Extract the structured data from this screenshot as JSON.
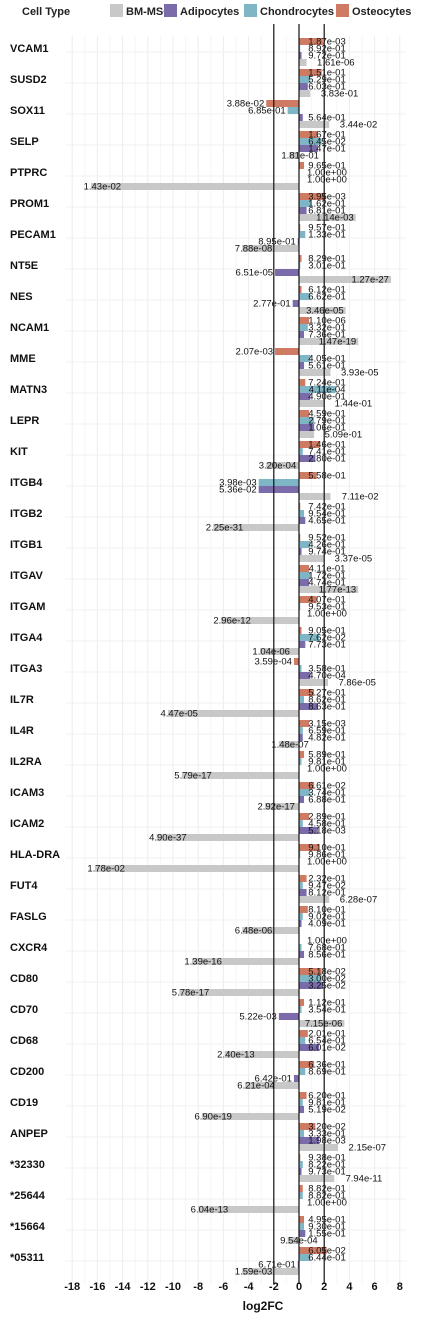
{
  "chart_data": {
    "type": "bar",
    "orientation": "horizontal",
    "legend": {
      "title": "Cell Type",
      "placement": "top",
      "entries": [
        {
          "name": "BM-MSC",
          "color": "#c8c8c8"
        },
        {
          "name": "Adipocytes",
          "color": "#7b6bab"
        },
        {
          "name": "Chondrocytes",
          "color": "#7fb6c6"
        },
        {
          "name": "Osteocytes",
          "color": "#cf7b64"
        }
      ]
    },
    "xlabel": "log2FC",
    "xlim": [
      -18.5,
      8.5
    ],
    "xticks": [
      -18,
      -16,
      -14,
      -12,
      -10,
      -8,
      -6,
      -4,
      -2,
      0,
      2,
      4,
      6,
      8
    ],
    "reference_lines": [
      -2,
      0,
      2
    ],
    "grid": true,
    "categories": [
      "VCAM1",
      "SUSD2",
      "SOX11",
      "SELP",
      "PTPRC",
      "PROM1",
      "PECAM1",
      "NT5E",
      "NES",
      "NCAM1",
      "MME",
      "MATN3",
      "LEPR",
      "KIT",
      "ITGB4",
      "ITGB2",
      "ITGB1",
      "ITGAV",
      "ITGAM",
      "ITGA4",
      "ITGA3",
      "IL7R",
      "IL4R",
      "IL2RA",
      "ICAM3",
      "ICAM2",
      "HLA-DRA",
      "FUT4",
      "FASLG",
      "CXCR4",
      "CD80",
      "CD70",
      "CD68",
      "CD200",
      "CD19",
      "ANPEP",
      "*32330",
      "*25644",
      "*15664",
      "*05311"
    ],
    "series": [
      {
        "name": "Osteocytes",
        "values": [
          1.9,
          1.8,
          -2.6,
          1.5,
          0.4,
          2.1,
          0.1,
          0.2,
          0.2,
          0.8,
          -1.9,
          0.5,
          0.8,
          1.6,
          1.4,
          0.1,
          0.1,
          0.8,
          1.4,
          0.2,
          -0.4,
          1.2,
          0.8,
          0.4,
          1.2,
          0.8,
          1.6,
          0.6,
          0.7,
          0.0,
          1.8,
          0.4,
          0.7,
          1.2,
          0.6,
          1.3,
          0.1,
          0.3,
          0.4,
          2.2
        ],
        "labels": [
          "1.87e-03",
          "1.51e-01",
          "3.88e-02",
          "1.67e-01",
          "9.65e-01",
          "3.95e-03",
          "9.57e-01",
          "8.29e-01",
          "6.12e-01",
          "1.10e-06",
          "2.07e-03",
          "7.24e-01",
          "4.59e-01",
          "1.46e-01",
          "5.58e-01",
          "7.42e-01",
          "9.52e-01",
          "4.11e-01",
          "4.07e-01",
          "9.05e-01",
          "3.59e-04",
          "5.27e-01",
          "3.15e-03",
          "5.89e-01",
          "6.61e-02",
          "2.89e-01",
          "9.10e-01",
          "2.32e-01",
          "8.10e-01",
          "1.00e+00",
          "5.18e-02",
          "1.12e-01",
          "2.01e-01",
          "6.36e-01",
          "6.20e-01",
          "3.20e-02",
          "9.38e-01",
          "8.82e-01",
          "4.95e-01",
          "6.05e-02"
        ]
      },
      {
        "name": "Chondrocytes",
        "values": [
          0.1,
          0.9,
          -0.9,
          1.8,
          0.0,
          1.0,
          0.5,
          0.1,
          0.9,
          0.7,
          0.9,
          2.9,
          1.2,
          0.3,
          -3.2,
          0.4,
          0.9,
          0.9,
          0.1,
          1.6,
          0.2,
          0.4,
          0.3,
          0.2,
          0.9,
          0.3,
          0.1,
          0.3,
          0.3,
          0.2,
          1.8,
          0.2,
          0.5,
          0.5,
          0.3,
          0.4,
          0.3,
          0.3,
          0.4,
          0.9
        ],
        "labels": [
          "8.92e-01",
          "5.29e-01",
          "6.85e-01",
          "6.45e-02",
          "1.00e+00",
          "1.62e-01",
          "1.33e-01",
          "3.01e-01",
          "6.62e-01",
          "3.32e-01",
          "4.05e-01",
          "4.11e-04",
          "2.79e-01",
          "7.41e-01",
          "3.98e-03",
          "9.54e-01",
          "4.26e-01",
          "1.72e-01",
          "9.53e-01",
          "7.62e-02",
          "3.58e-01",
          "8.62e-01",
          "6.59e-01",
          "9.81e-01",
          "3.74e-01",
          "4.58e-01",
          "9.86e-01",
          "9.47e-02",
          "9.02e-01",
          "7.68e-01",
          "3.00e-02",
          "3.54e-01",
          "6.54e-01",
          "8.69e-01",
          "9.81e-01",
          "3.33e-01",
          "8.22e-01",
          "8.82e-01",
          "9.30e-01",
          "6.44e-01"
        ]
      },
      {
        "name": "Adipocytes",
        "values": [
          0.2,
          0.7,
          0.3,
          1.5,
          0.0,
          0.6,
          -0.1,
          -1.9,
          -0.5,
          0.4,
          0.4,
          0.9,
          1.2,
          1.3,
          -3.2,
          0.5,
          0.2,
          0.8,
          0.0,
          0.5,
          0.9,
          1.5,
          0.3,
          0.0,
          0.4,
          1.5,
          0.0,
          0.6,
          0.2,
          0.4,
          1.9,
          -1.6,
          1.6,
          -0.4,
          0.4,
          1.6,
          0.2,
          0.0,
          0.5,
          -0.1
        ],
        "labels": [
          "9.72e-01",
          "6.03e-01",
          "5.64e-01",
          "1.47e-01",
          "1.00e+00",
          "6.81e-01",
          "8.95e-01",
          "6.51e-05",
          "2.77e-01",
          "7.36e-01",
          "5.61e-01",
          "4.90e-01",
          "1.06e-01",
          "2.80e-01",
          "5.36e-02",
          "4.65e-01",
          "9.74e-01",
          "4.74e-01",
          "1.00e+00",
          "7.73e-01",
          "4.70e-04",
          "8.63e-01",
          "4.82e-01",
          "1.00e+00",
          "6.88e-01",
          "5.18e-03",
          "1.00e+00",
          "8.12e-01",
          "4.09e-01",
          "8.56e-01",
          "3.25e-02",
          "5.22e-03",
          "6.01e-02",
          "6.42e-01",
          "5.19e-02",
          "1.98e-03",
          "9.73e-01",
          "1.00e+00",
          "1.55e-01",
          "6.71e-01"
        ]
      },
      {
        "name": "BM-MSC",
        "values": [
          0.6,
          0.9,
          2.4,
          -0.8,
          -16.5,
          4.5,
          -4.5,
          7.3,
          3.7,
          4.7,
          2.5,
          2.0,
          1.2,
          -2.6,
          2.5,
          -6.8,
          2.0,
          4.7,
          -6.2,
          -3.1,
          2.3,
          -10.4,
          -1.6,
          -9.3,
          -2.7,
          -11.3,
          -16.2,
          2.4,
          -4.5,
          -8.5,
          -9.5,
          3.6,
          -5.9,
          -4.3,
          -7.7,
          3.1,
          2.8,
          -8.0,
          -0.9,
          -4.5
        ],
        "labels": [
          "1.61e-06",
          "3.83e-01",
          "3.44e-02",
          "1.81e-01",
          "1.43e-02",
          "1.14e-03",
          "7.88e-08",
          "1.27e-27",
          "3.46e-05",
          "1.47e-19",
          "3.93e-05",
          "1.44e-01",
          "5.09e-01",
          "3.20e-04",
          "7.11e-02",
          "2.25e-31",
          "3.37e-05",
          "1.77e-13",
          "2.96e-12",
          "1.04e-06",
          "7.86e-05",
          "4.47e-05",
          "1.48e-07",
          "5.79e-17",
          "2.92e-17",
          "4.90e-37",
          "1.78e-02",
          "6.28e-07",
          "6.48e-06",
          "1.39e-16",
          "5.78e-17",
          "7.15e-06",
          "2.40e-13",
          "6.21e-04",
          "6.90e-19",
          "2.15e-07",
          "7.94e-11",
          "6.04e-13",
          "9.54e-04",
          "1.59e-03"
        ]
      }
    ]
  }
}
